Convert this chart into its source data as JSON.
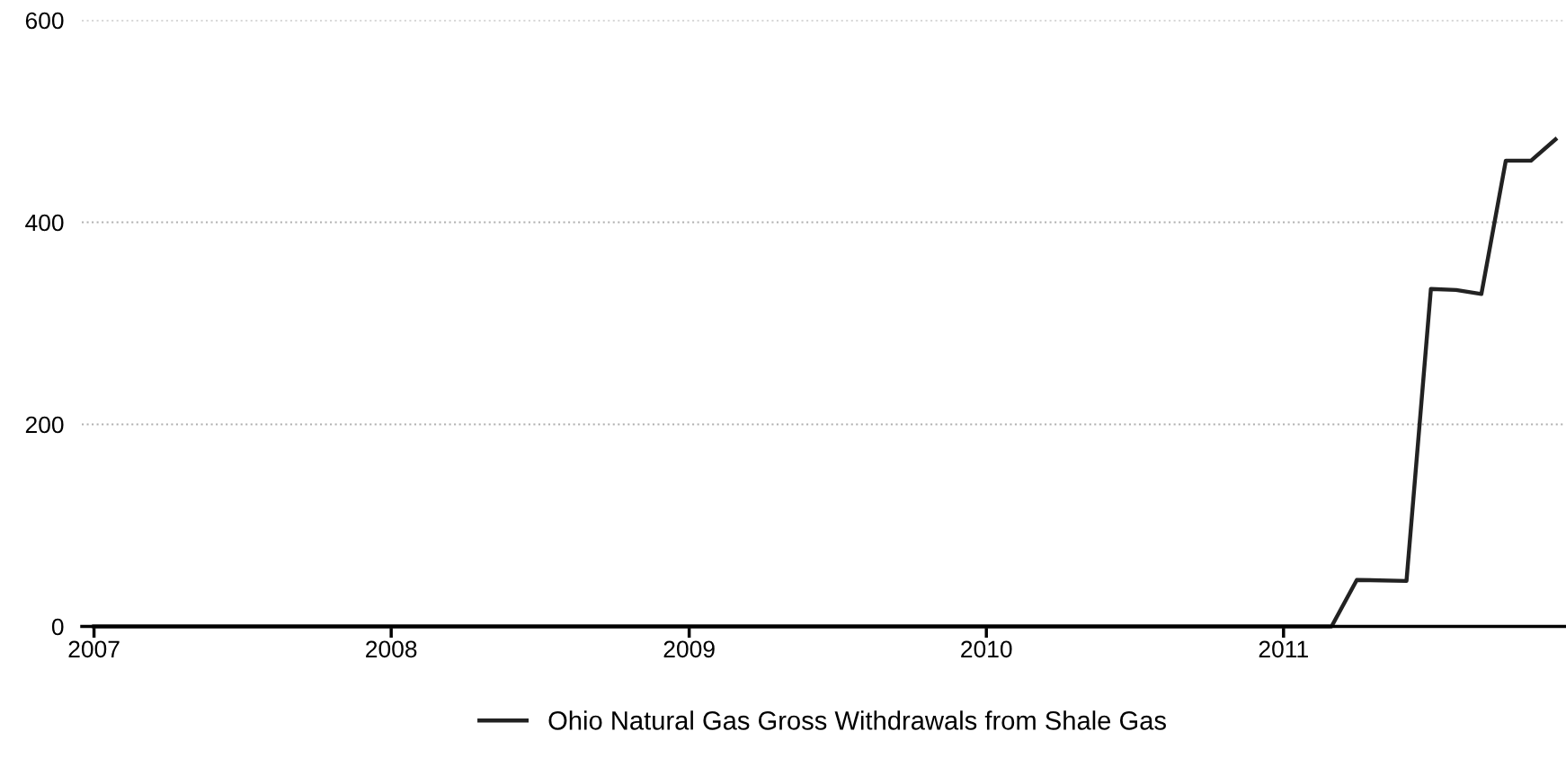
{
  "chart_data": {
    "type": "line",
    "x": [
      "2007-01",
      "2011-03",
      "2011-04",
      "2011-06",
      "2011-07",
      "2011-08",
      "2011-09",
      "2011-10",
      "2011-11",
      "2011-12"
    ],
    "series": [
      {
        "name": "Ohio Natural Gas Gross Withdrawals from Shale Gas",
        "color": "#222222",
        "values": [
          0,
          0,
          46,
          45,
          334,
          333,
          329,
          461,
          461,
          482
        ]
      }
    ],
    "xlim": [
      "2006-12-17",
      "2011-12-12"
    ],
    "xticks": [
      {
        "value": "2007-01-01",
        "label": "2007"
      },
      {
        "value": "2008-01-01",
        "label": "2008"
      },
      {
        "value": "2009-01-01",
        "label": "2009"
      },
      {
        "value": "2010-01-01",
        "label": "2010"
      },
      {
        "value": "2011-01-01",
        "label": "2011"
      }
    ],
    "ylim": [
      0,
      600
    ],
    "yticks": [
      0,
      200,
      400,
      600
    ],
    "grid": "y",
    "legend": "bottom",
    "marker": "none",
    "line_style": "solid"
  }
}
